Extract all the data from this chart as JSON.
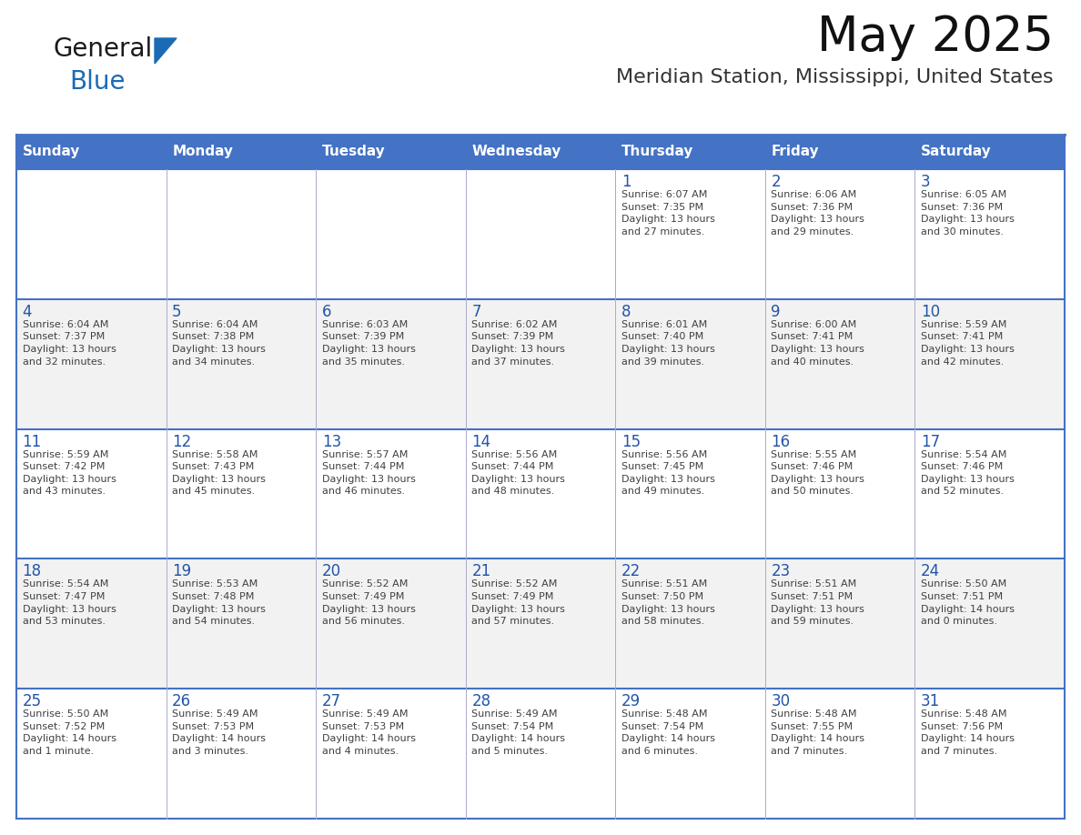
{
  "title": "May 2025",
  "subtitle": "Meridian Station, Mississippi, United States",
  "header_bg_color": "#4472C4",
  "header_text_color": "#FFFFFF",
  "cell_bg_color_white": "#FFFFFF",
  "cell_bg_color_gray": "#F2F2F2",
  "day_number_color": "#2255AA",
  "cell_text_color": "#404040",
  "grid_line_color": "#4472C4",
  "grid_line_color_thin": "#AAAACC",
  "days_of_week": [
    "Sunday",
    "Monday",
    "Tuesday",
    "Wednesday",
    "Thursday",
    "Friday",
    "Saturday"
  ],
  "weeks": [
    [
      {
        "day": 0,
        "text": ""
      },
      {
        "day": 0,
        "text": ""
      },
      {
        "day": 0,
        "text": ""
      },
      {
        "day": 0,
        "text": ""
      },
      {
        "day": 1,
        "text": "Sunrise: 6:07 AM\nSunset: 7:35 PM\nDaylight: 13 hours\nand 27 minutes."
      },
      {
        "day": 2,
        "text": "Sunrise: 6:06 AM\nSunset: 7:36 PM\nDaylight: 13 hours\nand 29 minutes."
      },
      {
        "day": 3,
        "text": "Sunrise: 6:05 AM\nSunset: 7:36 PM\nDaylight: 13 hours\nand 30 minutes."
      }
    ],
    [
      {
        "day": 4,
        "text": "Sunrise: 6:04 AM\nSunset: 7:37 PM\nDaylight: 13 hours\nand 32 minutes."
      },
      {
        "day": 5,
        "text": "Sunrise: 6:04 AM\nSunset: 7:38 PM\nDaylight: 13 hours\nand 34 minutes."
      },
      {
        "day": 6,
        "text": "Sunrise: 6:03 AM\nSunset: 7:39 PM\nDaylight: 13 hours\nand 35 minutes."
      },
      {
        "day": 7,
        "text": "Sunrise: 6:02 AM\nSunset: 7:39 PM\nDaylight: 13 hours\nand 37 minutes."
      },
      {
        "day": 8,
        "text": "Sunrise: 6:01 AM\nSunset: 7:40 PM\nDaylight: 13 hours\nand 39 minutes."
      },
      {
        "day": 9,
        "text": "Sunrise: 6:00 AM\nSunset: 7:41 PM\nDaylight: 13 hours\nand 40 minutes."
      },
      {
        "day": 10,
        "text": "Sunrise: 5:59 AM\nSunset: 7:41 PM\nDaylight: 13 hours\nand 42 minutes."
      }
    ],
    [
      {
        "day": 11,
        "text": "Sunrise: 5:59 AM\nSunset: 7:42 PM\nDaylight: 13 hours\nand 43 minutes."
      },
      {
        "day": 12,
        "text": "Sunrise: 5:58 AM\nSunset: 7:43 PM\nDaylight: 13 hours\nand 45 minutes."
      },
      {
        "day": 13,
        "text": "Sunrise: 5:57 AM\nSunset: 7:44 PM\nDaylight: 13 hours\nand 46 minutes."
      },
      {
        "day": 14,
        "text": "Sunrise: 5:56 AM\nSunset: 7:44 PM\nDaylight: 13 hours\nand 48 minutes."
      },
      {
        "day": 15,
        "text": "Sunrise: 5:56 AM\nSunset: 7:45 PM\nDaylight: 13 hours\nand 49 minutes."
      },
      {
        "day": 16,
        "text": "Sunrise: 5:55 AM\nSunset: 7:46 PM\nDaylight: 13 hours\nand 50 minutes."
      },
      {
        "day": 17,
        "text": "Sunrise: 5:54 AM\nSunset: 7:46 PM\nDaylight: 13 hours\nand 52 minutes."
      }
    ],
    [
      {
        "day": 18,
        "text": "Sunrise: 5:54 AM\nSunset: 7:47 PM\nDaylight: 13 hours\nand 53 minutes."
      },
      {
        "day": 19,
        "text": "Sunrise: 5:53 AM\nSunset: 7:48 PM\nDaylight: 13 hours\nand 54 minutes."
      },
      {
        "day": 20,
        "text": "Sunrise: 5:52 AM\nSunset: 7:49 PM\nDaylight: 13 hours\nand 56 minutes."
      },
      {
        "day": 21,
        "text": "Sunrise: 5:52 AM\nSunset: 7:49 PM\nDaylight: 13 hours\nand 57 minutes."
      },
      {
        "day": 22,
        "text": "Sunrise: 5:51 AM\nSunset: 7:50 PM\nDaylight: 13 hours\nand 58 minutes."
      },
      {
        "day": 23,
        "text": "Sunrise: 5:51 AM\nSunset: 7:51 PM\nDaylight: 13 hours\nand 59 minutes."
      },
      {
        "day": 24,
        "text": "Sunrise: 5:50 AM\nSunset: 7:51 PM\nDaylight: 14 hours\nand 0 minutes."
      }
    ],
    [
      {
        "day": 25,
        "text": "Sunrise: 5:50 AM\nSunset: 7:52 PM\nDaylight: 14 hours\nand 1 minute."
      },
      {
        "day": 26,
        "text": "Sunrise: 5:49 AM\nSunset: 7:53 PM\nDaylight: 14 hours\nand 3 minutes."
      },
      {
        "day": 27,
        "text": "Sunrise: 5:49 AM\nSunset: 7:53 PM\nDaylight: 14 hours\nand 4 minutes."
      },
      {
        "day": 28,
        "text": "Sunrise: 5:49 AM\nSunset: 7:54 PM\nDaylight: 14 hours\nand 5 minutes."
      },
      {
        "day": 29,
        "text": "Sunrise: 5:48 AM\nSunset: 7:54 PM\nDaylight: 14 hours\nand 6 minutes."
      },
      {
        "day": 30,
        "text": "Sunrise: 5:48 AM\nSunset: 7:55 PM\nDaylight: 14 hours\nand 7 minutes."
      },
      {
        "day": 31,
        "text": "Sunrise: 5:48 AM\nSunset: 7:56 PM\nDaylight: 14 hours\nand 7 minutes."
      }
    ]
  ],
  "logo_color_general": "#1a1a1a",
  "logo_color_blue": "#1a6bb5",
  "logo_triangle_color": "#1a6bb5",
  "title_fontsize": 38,
  "subtitle_fontsize": 16,
  "header_fontsize": 11,
  "day_num_fontsize": 12,
  "cell_fontsize": 8
}
